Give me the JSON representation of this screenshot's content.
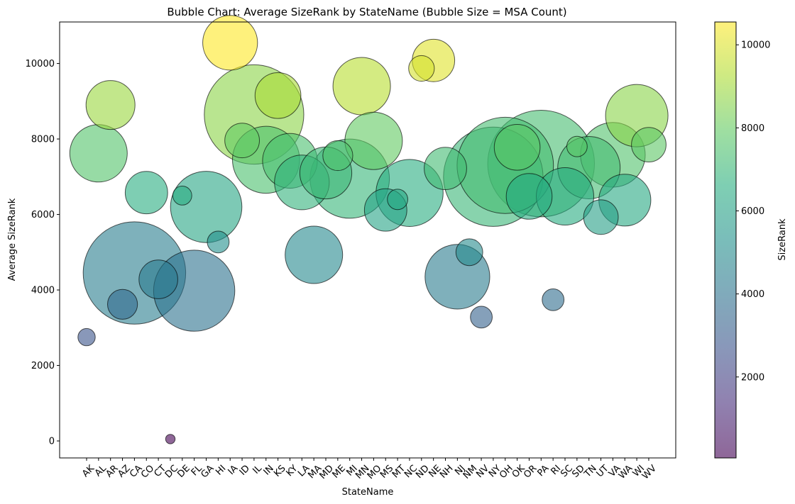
{
  "chart_data": {
    "type": "scatter",
    "title": "Bubble Chart: Average SizeRank by StateName (Bubble Size = MSA Count)",
    "xlabel": "StateName",
    "ylabel": "Average SizeRank",
    "ylim": [
      -450,
      11100
    ],
    "yticks": [
      0,
      2000,
      4000,
      6000,
      8000,
      10000
    ],
    "grid": false,
    "categories": [
      "AK",
      "AL",
      "AR",
      "AZ",
      "CA",
      "CO",
      "CT",
      "DC",
      "DE",
      "FL",
      "GA",
      "HI",
      "IA",
      "ID",
      "IL",
      "IN",
      "KS",
      "KY",
      "LA",
      "MA",
      "MD",
      "ME",
      "MI",
      "MN",
      "MO",
      "MS",
      "MT",
      "NC",
      "ND",
      "NE",
      "NH",
      "NJ",
      "NM",
      "NV",
      "NY",
      "OH",
      "OK",
      "OR",
      "PA",
      "RI",
      "SC",
      "SD",
      "TN",
      "UT",
      "VA",
      "WA",
      "WI",
      "WV"
    ],
    "colorbar": {
      "label": "SizeRank",
      "range": [
        50,
        10550
      ],
      "ticks": [
        2000,
        4000,
        6000,
        8000,
        10000
      ],
      "colormap": "viridis"
    },
    "points": [
      {
        "x": "AK",
        "y": 2750,
        "size": 1
      },
      {
        "x": "AL",
        "y": 7620,
        "size": 11
      },
      {
        "x": "AR",
        "y": 8900,
        "size": 8
      },
      {
        "x": "AZ",
        "y": 3620,
        "size": 3
      },
      {
        "x": "CA",
        "y": 4450,
        "size": 35
      },
      {
        "x": "CO",
        "y": 6580,
        "size": 6
      },
      {
        "x": "CT",
        "y": 4280,
        "size": 5
      },
      {
        "x": "DC",
        "y": 50,
        "size": 0.3
      },
      {
        "x": "DE",
        "y": 6500,
        "size": 1.2
      },
      {
        "x": "FL",
        "y": 3980,
        "size": 22
      },
      {
        "x": "GA",
        "y": 6200,
        "size": 17
      },
      {
        "x": "HI",
        "y": 5270,
        "size": 1.6
      },
      {
        "x": "IA",
        "y": 10550,
        "size": 10
      },
      {
        "x": "ID",
        "y": 7960,
        "size": 4
      },
      {
        "x": "IL",
        "y": 8650,
        "size": 33
      },
      {
        "x": "IN",
        "y": 7450,
        "size": 15
      },
      {
        "x": "KS",
        "y": 9150,
        "size": 7
      },
      {
        "x": "KY",
        "y": 7420,
        "size": 10
      },
      {
        "x": "LA",
        "y": 6850,
        "size": 10
      },
      {
        "x": "MA",
        "y": 4930,
        "size": 11
      },
      {
        "x": "MD",
        "y": 7100,
        "size": 9
      },
      {
        "x": "ME",
        "y": 7560,
        "size": 3
      },
      {
        "x": "MI",
        "y": 6950,
        "size": 21
      },
      {
        "x": "MN",
        "y": 9400,
        "size": 11
      },
      {
        "x": "MO",
        "y": 7950,
        "size": 11
      },
      {
        "x": "MS",
        "y": 6120,
        "size": 6
      },
      {
        "x": "MT",
        "y": 6400,
        "size": 1.4
      },
      {
        "x": "NC",
        "y": 6570,
        "size": 15
      },
      {
        "x": "ND",
        "y": 9870,
        "size": 2.2
      },
      {
        "x": "NE",
        "y": 10080,
        "size": 6
      },
      {
        "x": "NH",
        "y": 7220,
        "size": 6
      },
      {
        "x": "NJ",
        "y": 4350,
        "size": 14
      },
      {
        "x": "NM",
        "y": 5000,
        "size": 2.4
      },
      {
        "x": "NV",
        "y": 3280,
        "size": 1.6
      },
      {
        "x": "NY",
        "y": 7000,
        "size": 33
      },
      {
        "x": "OH",
        "y": 7300,
        "size": 31
      },
      {
        "x": "OK",
        "y": 7780,
        "size": 7
      },
      {
        "x": "OR",
        "y": 6480,
        "size": 7
      },
      {
        "x": "PA",
        "y": 7350,
        "size": 38
      },
      {
        "x": "RI",
        "y": 3740,
        "size": 1.6
      },
      {
        "x": "SC",
        "y": 6480,
        "size": 11
      },
      {
        "x": "SD",
        "y": 7800,
        "size": 1.4
      },
      {
        "x": "TN",
        "y": 7240,
        "size": 13
      },
      {
        "x": "UT",
        "y": 5930,
        "size": 4
      },
      {
        "x": "VA",
        "y": 7580,
        "size": 14
      },
      {
        "x": "WA",
        "y": 6380,
        "size": 9
      },
      {
        "x": "WI",
        "y": 8620,
        "size": 13
      },
      {
        "x": "WV",
        "y": 7850,
        "size": 4
      }
    ]
  }
}
